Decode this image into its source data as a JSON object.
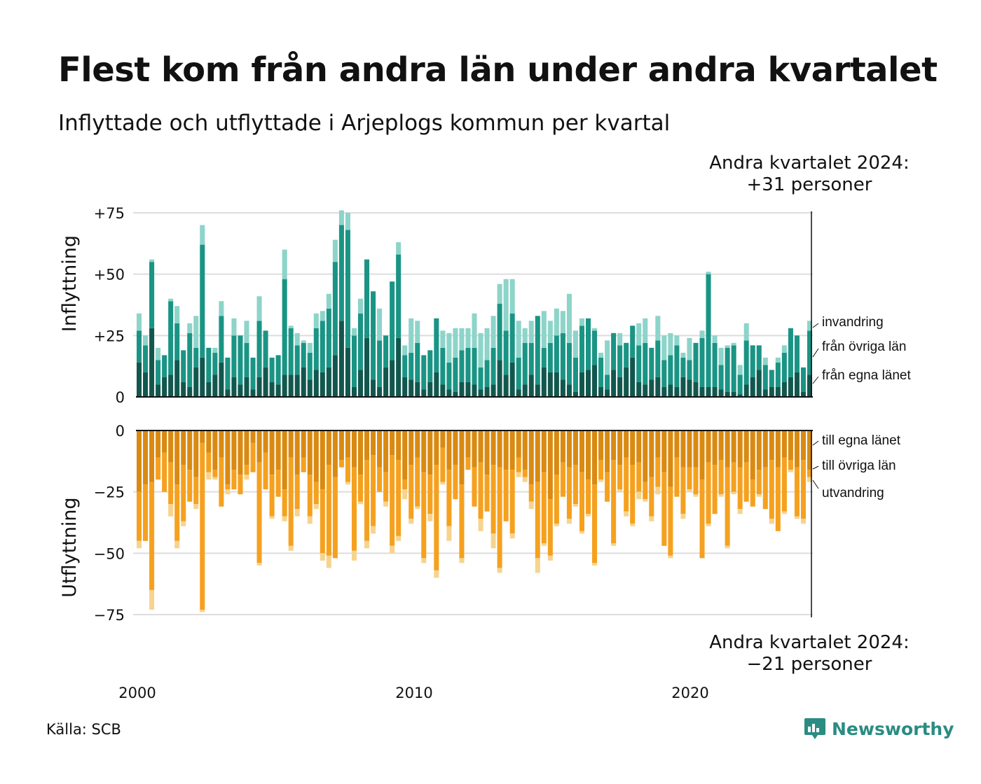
{
  "title": "Flest kom från andra län under andra kvartalet",
  "subtitle": "Inflyttade och utflyttade i Arjeplogs kommun per kvartal",
  "annotation_top": {
    "line1": "Andra kvartalet 2024:",
    "line2": "+31 personer"
  },
  "annotation_bottom": {
    "line1": "Andra kvartalet 2024:",
    "line2": "−21 personer"
  },
  "source": "Källa: SCB",
  "logo": {
    "text": "Newsworthy",
    "icon": "bar-chart-speech-bubble-icon"
  },
  "colors": {
    "in_own": "#12574e",
    "in_other": "#1a9484",
    "in_immigration": "#8dd4c9",
    "out_own": "#d98a12",
    "out_other": "#f5a11f",
    "out_emigration": "#f6d48f",
    "grid": "#dddddd"
  },
  "chart_data": [
    {
      "type": "bar",
      "stacked": true,
      "title": "",
      "ylabel": "Inflyttning",
      "ylim": [
        0,
        75
      ],
      "yticks": [
        "0",
        "+25",
        "+50",
        "+75"
      ],
      "ytick_values": [
        0,
        25,
        50,
        75
      ],
      "xticks": [
        "2000",
        "2010",
        "2020"
      ],
      "x_start": "2000 Q1",
      "x_end": "2024 Q2",
      "grid": true,
      "legend_placement": "right",
      "series": [
        {
          "name": "från egna länet",
          "values": [
            14,
            10,
            28,
            5,
            8,
            9,
            15,
            6,
            4,
            12,
            16,
            6,
            9,
            14,
            3,
            8,
            5,
            8,
            3,
            8,
            12,
            6,
            5,
            9,
            9,
            9,
            12,
            7,
            11,
            10,
            12,
            17,
            31,
            20,
            4,
            11,
            24,
            7,
            4,
            12,
            15,
            24,
            8,
            7,
            6,
            3,
            6,
            10,
            5,
            3,
            2,
            6,
            6,
            5,
            3,
            4,
            5,
            15,
            9,
            14,
            3,
            5,
            9,
            5,
            12,
            10,
            10,
            7,
            5,
            2,
            10,
            11,
            13,
            4,
            3,
            11,
            8,
            12,
            16,
            6,
            5,
            7,
            8,
            4,
            5,
            4,
            8,
            7,
            6,
            4,
            4,
            4,
            3,
            2,
            2,
            1,
            5,
            8,
            11,
            3,
            4,
            4,
            6,
            8,
            10,
            2,
            9
          ]
        },
        {
          "name": "från övriga län",
          "values": [
            13,
            11,
            27,
            10,
            9,
            30,
            15,
            13,
            22,
            8,
            46,
            14,
            9,
            19,
            13,
            17,
            20,
            14,
            13,
            23,
            15,
            10,
            12,
            39,
            19,
            12,
            10,
            11,
            17,
            21,
            24,
            38,
            39,
            48,
            21,
            23,
            32,
            36,
            19,
            13,
            32,
            34,
            9,
            11,
            16,
            14,
            13,
            22,
            15,
            11,
            14,
            13,
            14,
            15,
            9,
            11,
            15,
            23,
            18,
            20,
            13,
            17,
            13,
            28,
            8,
            12,
            15,
            19,
            17,
            14,
            19,
            21,
            14,
            12,
            6,
            15,
            13,
            10,
            13,
            15,
            17,
            13,
            15,
            11,
            12,
            17,
            8,
            8,
            16,
            20,
            46,
            18,
            10,
            18,
            19,
            8,
            18,
            13,
            10,
            10,
            7,
            10,
            12,
            20,
            15,
            10,
            18
          ]
        },
        {
          "name": "invandring",
          "values": [
            7,
            4,
            1,
            5,
            0,
            1,
            7,
            0,
            4,
            13,
            8,
            0,
            2,
            6,
            0,
            7,
            0,
            9,
            0,
            10,
            0,
            0,
            0,
            12,
            1,
            5,
            1,
            4,
            6,
            4,
            6,
            9,
            6,
            7,
            3,
            6,
            0,
            0,
            13,
            0,
            0,
            5,
            4,
            14,
            9,
            0,
            0,
            0,
            7,
            12,
            12,
            9,
            8,
            14,
            14,
            13,
            13,
            8,
            21,
            14,
            15,
            6,
            9,
            0,
            15,
            9,
            11,
            9,
            20,
            11,
            3,
            0,
            1,
            2,
            14,
            0,
            5,
            0,
            0,
            9,
            10,
            0,
            10,
            10,
            9,
            4,
            2,
            9,
            0,
            3,
            1,
            3,
            7,
            1,
            1,
            4,
            7,
            0,
            0,
            3,
            0,
            2,
            3,
            0,
            0,
            0,
            4
          ]
        }
      ]
    },
    {
      "type": "bar",
      "stacked": true,
      "title": "",
      "ylabel": "Utflyttning",
      "ylim": [
        -75,
        0
      ],
      "yticks": [
        "0",
        "−25",
        "−50",
        "−75"
      ],
      "ytick_values": [
        0,
        -25,
        -50,
        -75
      ],
      "xticks": [
        "2000",
        "2010",
        "2020"
      ],
      "x_start": "2000 Q1",
      "x_end": "2024 Q2",
      "grid": true,
      "legend_placement": "right",
      "series": [
        {
          "name": "till egna länet",
          "values": [
            -25,
            -22,
            -21,
            -11,
            -9,
            -13,
            -22,
            -14,
            -16,
            -19,
            -5,
            -9,
            -16,
            -11,
            -22,
            -16,
            -18,
            -14,
            -5,
            -13,
            -9,
            -18,
            -16,
            -24,
            -11,
            -18,
            -11,
            -18,
            -21,
            -24,
            -14,
            -19,
            -12,
            -11,
            -15,
            -18,
            -12,
            -10,
            -15,
            -17,
            -10,
            -12,
            -20,
            -14,
            -11,
            -17,
            -18,
            -14,
            -7,
            -16,
            -14,
            -22,
            -11,
            -15,
            -13,
            -18,
            -14,
            -15,
            -16,
            -16,
            -11,
            -16,
            -22,
            -21,
            -17,
            -28,
            -18,
            -13,
            -15,
            -14,
            -17,
            -20,
            -22,
            -12,
            -17,
            -12,
            -14,
            -11,
            -14,
            -13,
            -21,
            -19,
            -11,
            -17,
            -23,
            -11,
            -15,
            -15,
            -15,
            -20,
            -13,
            -14,
            -12,
            -15,
            -13,
            -15,
            -13,
            -20,
            -16,
            -15,
            -12,
            -15,
            -11,
            -12,
            -15,
            -12,
            -16
          ]
        },
        {
          "name": "till övriga län",
          "values": [
            -20,
            -23,
            -44,
            -9,
            -16,
            -17,
            -23,
            -23,
            -13,
            -11,
            -68,
            -8,
            -3,
            -20,
            -2,
            -8,
            -8,
            -4,
            -12,
            -41,
            -15,
            -17,
            -11,
            -11,
            -36,
            -14,
            -6,
            -17,
            -9,
            -26,
            -37,
            -33,
            -3,
            -10,
            -34,
            -11,
            -33,
            -29,
            -10,
            -12,
            -37,
            -31,
            -4,
            -22,
            -20,
            -35,
            -16,
            -43,
            -14,
            -23,
            -14,
            -30,
            -5,
            -16,
            -23,
            -15,
            -28,
            -41,
            -21,
            -26,
            -6,
            -3,
            -7,
            -31,
            -29,
            -23,
            -20,
            -14,
            -21,
            -16,
            -24,
            -14,
            -32,
            -8,
            -12,
            -34,
            -10,
            -22,
            -24,
            -12,
            -7,
            -16,
            -12,
            -30,
            -28,
            -16,
            -19,
            -9,
            -11,
            -32,
            -25,
            -20,
            -14,
            -32,
            -12,
            -17,
            -16,
            -11,
            -10,
            -17,
            -24,
            -26,
            -22,
            -4,
            -20,
            -24,
            -3
          ]
        },
        {
          "name": "utvandring",
          "values": [
            -3,
            0,
            -8,
            0,
            0,
            -5,
            -3,
            -2,
            0,
            -2,
            -1,
            -3,
            -1,
            0,
            -2,
            0,
            0,
            -2,
            0,
            -1,
            0,
            -1,
            0,
            -2,
            -2,
            -3,
            0,
            -3,
            -2,
            -3,
            -5,
            0,
            0,
            -1,
            -4,
            -1,
            -3,
            -3,
            0,
            -2,
            -3,
            -2,
            -4,
            -2,
            -1,
            -2,
            -3,
            -3,
            -1,
            -6,
            0,
            -2,
            0,
            0,
            -5,
            0,
            -6,
            -2,
            0,
            -2,
            -2,
            -2,
            -3,
            -6,
            -1,
            -2,
            -1,
            0,
            -2,
            -1,
            -1,
            -1,
            -1,
            -1,
            0,
            -1,
            -1,
            -2,
            -1,
            -3,
            -1,
            -2,
            -3,
            0,
            -1,
            0,
            -2,
            -1,
            -1,
            0,
            -1,
            0,
            -1,
            -1,
            -1,
            -2,
            0,
            0,
            -1,
            0,
            -2,
            0,
            -1,
            -1,
            -1,
            -2,
            -2
          ]
        }
      ]
    }
  ]
}
